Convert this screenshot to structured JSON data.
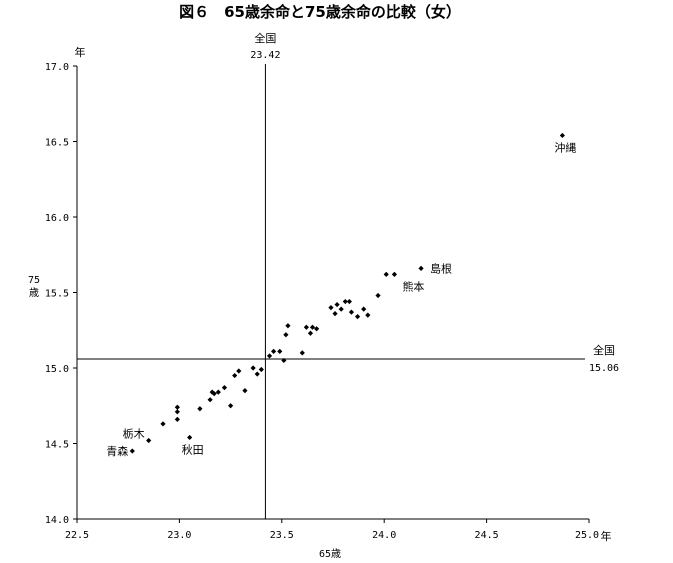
{
  "chart_data": {
    "type": "scatter",
    "title": "図６　65歳余命と75歳余命の比較（女）",
    "xlabel": "65歳",
    "x_unit": "年",
    "ylabel": "75\n歳",
    "y_unit": "年",
    "xlim": [
      22.5,
      25.0
    ],
    "ylim": [
      14.0,
      17.0
    ],
    "x_ticks": [
      "22.5",
      "23.0",
      "23.5",
      "24.0",
      "24.5",
      "25.0"
    ],
    "y_ticks": [
      "14.0",
      "14.5",
      "15.0",
      "15.5",
      "16.0",
      "16.5",
      "17.0"
    ],
    "grid": false,
    "reference_lines": {
      "vertical": {
        "label": "全国",
        "value_text": "23.42",
        "value": 23.42
      },
      "horizontal": {
        "label": "全国",
        "value_text": "15.06",
        "value": 15.06
      }
    },
    "labeled_points": [
      {
        "label": "沖縄",
        "x": 24.87,
        "y": 16.54
      },
      {
        "label": "島根",
        "x": 24.18,
        "y": 15.66
      },
      {
        "label": "熊本",
        "x": 24.05,
        "y": 15.62
      },
      {
        "label": "栃木",
        "x": 22.85,
        "y": 14.52
      },
      {
        "label": "青森",
        "x": 22.77,
        "y": 14.45
      },
      {
        "label": "秋田",
        "x": 23.05,
        "y": 14.54
      }
    ],
    "points": [
      [
        22.77,
        14.45
      ],
      [
        22.85,
        14.52
      ],
      [
        22.92,
        14.63
      ],
      [
        22.99,
        14.66
      ],
      [
        22.99,
        14.71
      ],
      [
        22.99,
        14.74
      ],
      [
        23.05,
        14.54
      ],
      [
        23.1,
        14.73
      ],
      [
        23.15,
        14.79
      ],
      [
        23.16,
        14.84
      ],
      [
        23.17,
        14.83
      ],
      [
        23.19,
        14.84
      ],
      [
        23.22,
        14.87
      ],
      [
        23.25,
        14.75
      ],
      [
        23.27,
        14.95
      ],
      [
        23.29,
        14.98
      ],
      [
        23.32,
        14.85
      ],
      [
        23.36,
        15.0
      ],
      [
        23.38,
        14.96
      ],
      [
        23.4,
        14.99
      ],
      [
        23.44,
        15.08
      ],
      [
        23.46,
        15.11
      ],
      [
        23.49,
        15.11
      ],
      [
        23.51,
        15.05
      ],
      [
        23.52,
        15.22
      ],
      [
        23.53,
        15.28
      ],
      [
        23.6,
        15.1
      ],
      [
        23.62,
        15.27
      ],
      [
        23.64,
        15.23
      ],
      [
        23.65,
        15.27
      ],
      [
        23.67,
        15.26
      ],
      [
        23.74,
        15.4
      ],
      [
        23.76,
        15.36
      ],
      [
        23.77,
        15.42
      ],
      [
        23.79,
        15.39
      ],
      [
        23.81,
        15.44
      ],
      [
        23.83,
        15.44
      ],
      [
        23.84,
        15.37
      ],
      [
        23.87,
        15.34
      ],
      [
        23.9,
        15.39
      ],
      [
        23.92,
        15.35
      ],
      [
        23.97,
        15.48
      ],
      [
        24.01,
        15.62
      ],
      [
        24.05,
        15.62
      ],
      [
        24.18,
        15.66
      ],
      [
        24.87,
        16.54
      ]
    ]
  }
}
